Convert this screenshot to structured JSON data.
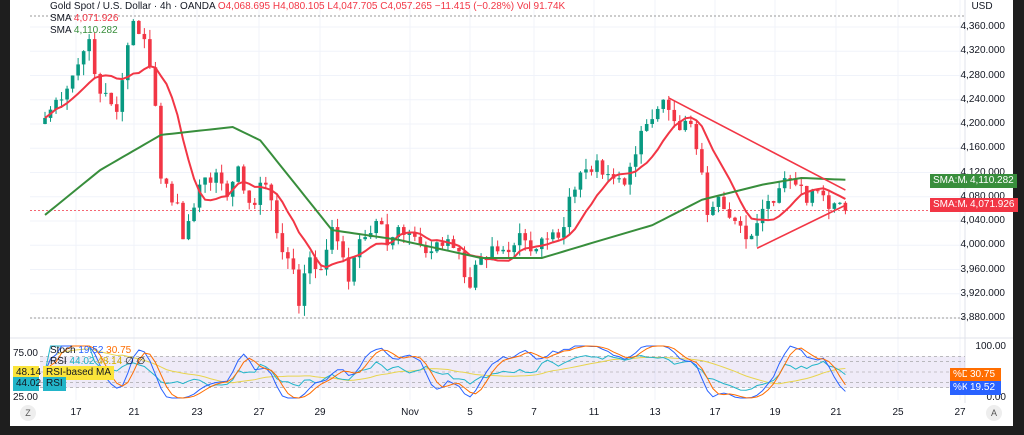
{
  "header": {
    "symbol": "Gold Spot / U.S. Dollar · 4h · OANDA",
    "open": "O4,068.695",
    "high": "H4,080.105",
    "low": "L4,047.705",
    "close": "C4,057.265",
    "change": "−11.415 (−0.28%)",
    "volume": "Vol 91.74K",
    "currency": "USD"
  },
  "indicators": [
    {
      "name": "SMA",
      "value": "4,071.926",
      "color": "#f23645"
    },
    {
      "name": "SMA",
      "value": "4,110.282",
      "color": "#388e3c"
    }
  ],
  "price_axis": [
    "4,360.000",
    "4,320.000",
    "4,280.000",
    "4,240.000",
    "4,200.000",
    "4,160.000",
    "4,120.000",
    "4,080.000",
    "4,040.000",
    "4,000.000",
    "3,960.000",
    "3,920.000",
    "3,880.000"
  ],
  "price_tags": [
    {
      "label": "SMA:MA",
      "value": "4,110.282",
      "color": "#388e3c"
    },
    {
      "label": "SMA:MA",
      "value": "4,071.926",
      "color": "#f23645"
    }
  ],
  "osc": {
    "stoch_label": "Stoch",
    "stoch_k": "19.52",
    "stoch_d": "30.75",
    "rsi_label": "RSI",
    "rsi": "44.02",
    "rsi_ma": "48.14",
    "rsi_ma_label": "RSI-based MA",
    "left_ticks": [
      "75.00",
      "25.00"
    ],
    "right_ticks": [
      "100.00",
      "0.00"
    ],
    "d_tag": "%D",
    "k_tag": "%K",
    "hidden_vals": "∅ ∅"
  },
  "time_axis": [
    "17",
    "21",
    "23",
    "27",
    "29",
    "Nov",
    "5",
    "7",
    "11",
    "13",
    "17",
    "19",
    "21",
    "25",
    "27"
  ],
  "buttons": {
    "goto": "Z",
    "auto": "A"
  },
  "chart_data": {
    "type": "candlestick",
    "y_range": [
      3880,
      4360
    ],
    "close_waypoints_bar_price": [
      [
        0,
        4210
      ],
      [
        5,
        4280
      ],
      [
        8,
        4340
      ],
      [
        10,
        4250
      ],
      [
        13,
        4220
      ],
      [
        15,
        4330
      ],
      [
        16,
        4370
      ],
      [
        18,
        4340
      ],
      [
        20,
        4230
      ],
      [
        21,
        4110
      ],
      [
        24,
        4070
      ],
      [
        25,
        4010
      ],
      [
        28,
        4100
      ],
      [
        31,
        4120
      ],
      [
        33,
        4080
      ],
      [
        35,
        4130
      ],
      [
        37,
        4070
      ],
      [
        40,
        4100
      ],
      [
        42,
        4020
      ],
      [
        45,
        3960
      ],
      [
        46,
        3900
      ],
      [
        48,
        3980
      ],
      [
        50,
        3960
      ],
      [
        52,
        4030
      ],
      [
        54,
        3980
      ],
      [
        55,
        3940
      ],
      [
        57,
        4010
      ],
      [
        60,
        4040
      ],
      [
        62,
        4000
      ],
      [
        64,
        4030
      ],
      [
        66,
        4020
      ],
      [
        70,
        3990
      ],
      [
        73,
        4010
      ],
      [
        75,
        3990
      ],
      [
        77,
        3930
      ],
      [
        79,
        3980
      ],
      [
        82,
        3990
      ],
      [
        85,
        4000
      ],
      [
        86,
        4020
      ],
      [
        88,
        3990
      ],
      [
        91,
        4010
      ],
      [
        94,
        4030
      ],
      [
        95,
        4080
      ],
      [
        97,
        4120
      ],
      [
        100,
        4140
      ],
      [
        103,
        4110
      ],
      [
        105,
        4100
      ],
      [
        107,
        4150
      ],
      [
        109,
        4200
      ],
      [
        112,
        4240
      ],
      [
        115,
        4190
      ],
      [
        117,
        4200
      ],
      [
        119,
        4120
      ],
      [
        120,
        4050
      ],
      [
        122,
        4080
      ],
      [
        125,
        4040
      ],
      [
        127,
        4010
      ],
      [
        130,
        4060
      ],
      [
        132,
        4070
      ],
      [
        135,
        4110
      ],
      [
        136,
        4100
      ],
      [
        138,
        4070
      ],
      [
        140,
        4090
      ],
      [
        142,
        4060
      ],
      [
        144,
        4070
      ],
      [
        145,
        4057
      ]
    ],
    "sma_slow_waypoints_bar_price": [
      [
        0,
        4050
      ],
      [
        10,
        4124
      ],
      [
        21,
        4182
      ],
      [
        34,
        4195
      ],
      [
        39,
        4173
      ],
      [
        52,
        4025
      ],
      [
        64,
        4009
      ],
      [
        79,
        3979
      ],
      [
        90,
        3979
      ],
      [
        101,
        4009
      ],
      [
        110,
        4033
      ],
      [
        119,
        4075
      ],
      [
        130,
        4100
      ],
      [
        137,
        4111
      ],
      [
        145,
        4108
      ]
    ],
    "trendlines_bar_price": [
      [
        [
          113,
          4243
        ],
        [
          145,
          4091
        ]
      ],
      [
        [
          129,
          3995
        ],
        [
          145,
          4066
        ]
      ]
    ],
    "last_price": 4057.265
  }
}
